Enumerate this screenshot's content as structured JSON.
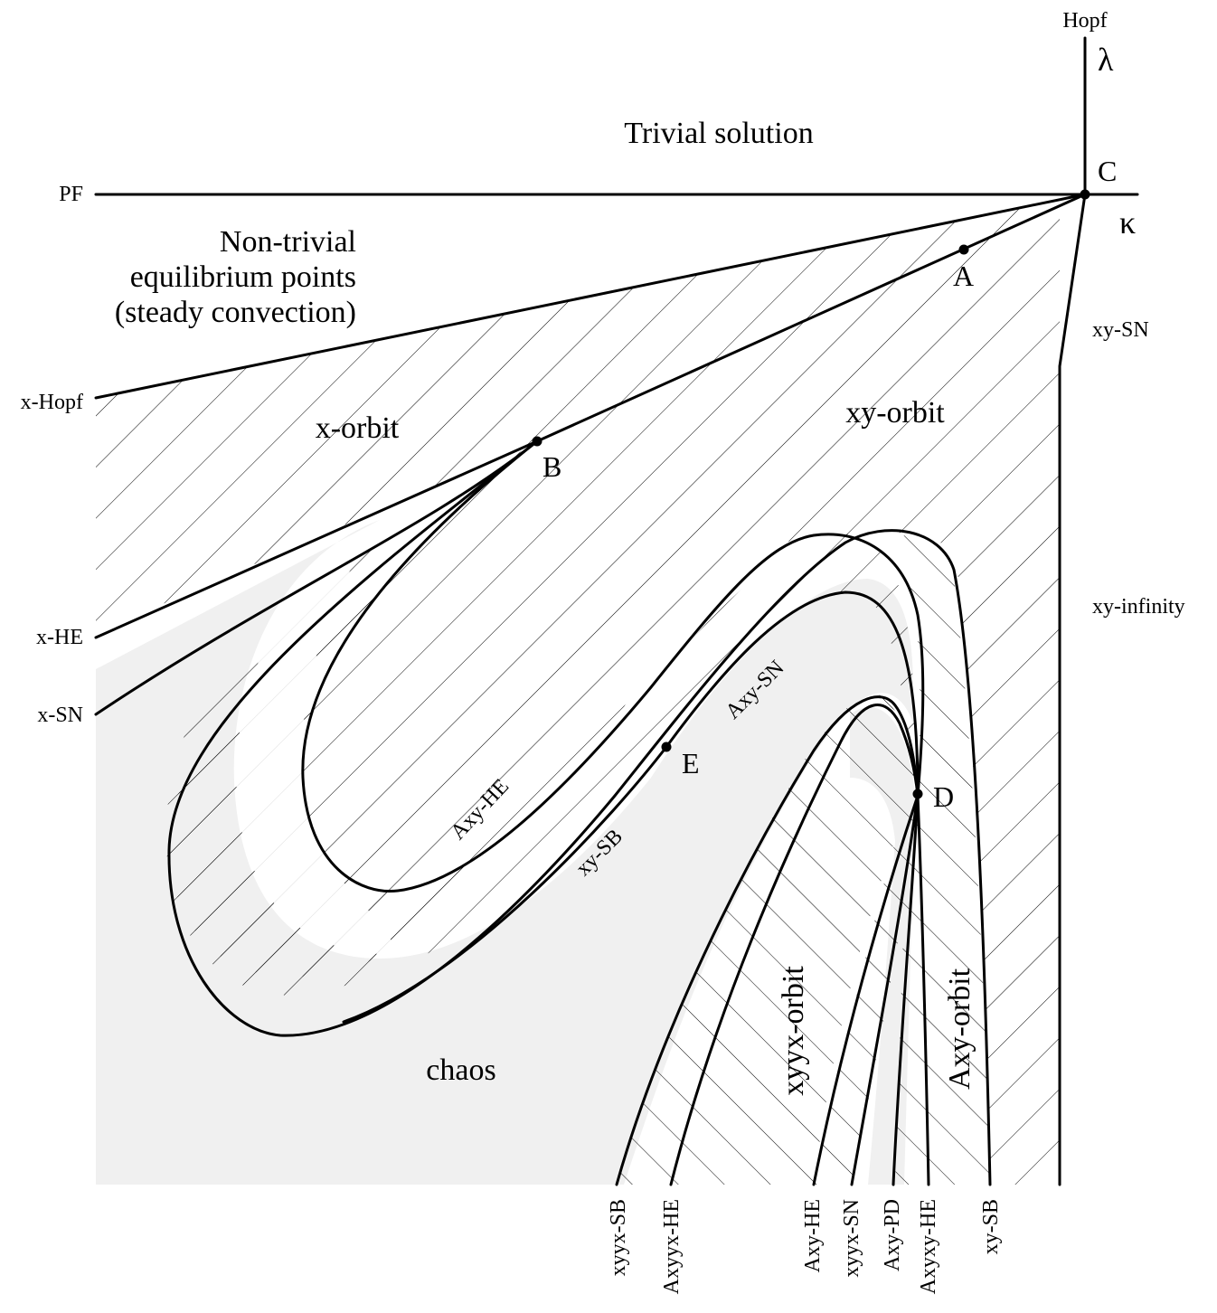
{
  "axes": {
    "lambda": "λ",
    "kappa": "κ",
    "hopf": "Hopf"
  },
  "left_labels": {
    "pf": "PF",
    "x_hopf": "x-Hopf",
    "x_he": "x-HE",
    "x_sn": "x-SN"
  },
  "right_labels": {
    "xy_sn": "xy-SN",
    "xy_infinity": "xy-infinity"
  },
  "points": {
    "a": "A",
    "b": "B",
    "c": "C",
    "d": "D",
    "e": "E"
  },
  "regions": {
    "trivial": "Trivial solution",
    "nontrivial_1": "Non-trivial",
    "nontrivial_2": "equilibrium points",
    "nontrivial_3": "(steady convection)",
    "x_orbit": "x-orbit",
    "xy_orbit": "xy-orbit",
    "chaos": "chaos",
    "xyyx_orbit": "xyyx-orbit",
    "axy_orbit": "Axy-orbit"
  },
  "curve_labels": {
    "axy_he": "Axy-HE",
    "xy_sb": "xy-SB",
    "axy_sn": "Axy-SN"
  },
  "bottom_labels": {
    "xyyx_sb": "xyyx-SB",
    "axyyx_he": "Axyyx-HE",
    "axy_he": "Axy-HE",
    "xyyx_sn": "xyyx-SN",
    "axy_pd": "Axy-PD",
    "axyxy_he": "Axyxy-HE",
    "xy_sb": "xy-SB"
  },
  "colors": {
    "chaos_fill": "#f0f0f0",
    "line": "#000000"
  }
}
